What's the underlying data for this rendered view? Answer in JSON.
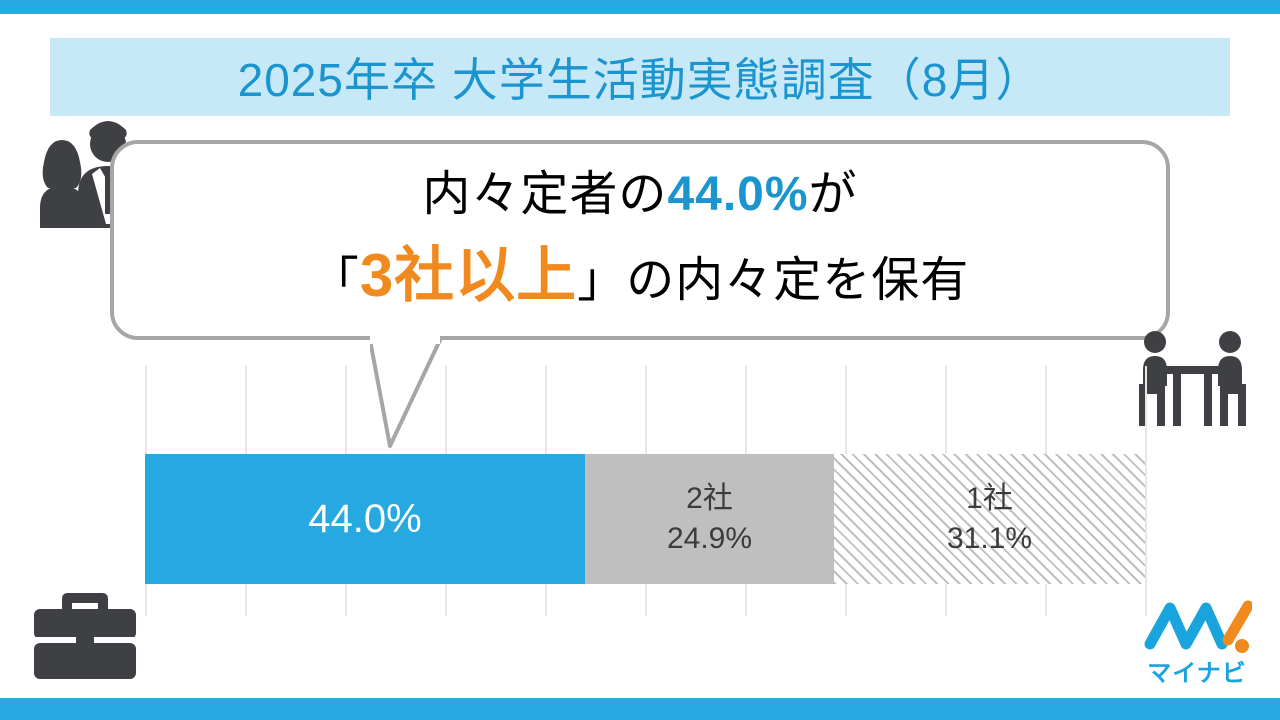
{
  "colors": {
    "brand_blue": "#25a9e0",
    "title_band_bg": "#c7e9f7",
    "title_text": "#1a95cf",
    "bubble_border": "#a6a6a6",
    "highlight_blue": "#1a95cf",
    "highlight_orange": "#f08a1e",
    "icon_gray": "#3f4044",
    "grid": "#e6e6e6",
    "seg2_fill": "#bfbfbf",
    "text_dark": "#3b3b3b"
  },
  "title": "2025年卒 大学生活動実態調査（8月）",
  "bubble": {
    "line1_pre": "内々定者の",
    "line1_pct": "44.0%",
    "line1_post": "が",
    "line2_pre": "「",
    "line2_emph": "3社以上",
    "line2_post": "」の内々定を保有"
  },
  "chart": {
    "type": "stacked_bar_horizontal",
    "total": 100,
    "gridline_step": 10,
    "segments": [
      {
        "label": "",
        "pct_label": "44.0%",
        "value": 44.0,
        "fill_mode": "solid",
        "fill": "#25a9e0",
        "text_color": "#ffffff"
      },
      {
        "label": "2社",
        "pct_label": "24.9%",
        "value": 24.9,
        "fill_mode": "solid",
        "fill": "#bfbfbf",
        "text_color": "#3b3b3b"
      },
      {
        "label": "1社",
        "pct_label": "31.1%",
        "value": 31.1,
        "fill_mode": "hatched",
        "fill": "#ffffff",
        "text_color": "#3b3b3b"
      }
    ]
  },
  "logo": {
    "text": "マイナビ",
    "color": "#1aa4dd"
  }
}
